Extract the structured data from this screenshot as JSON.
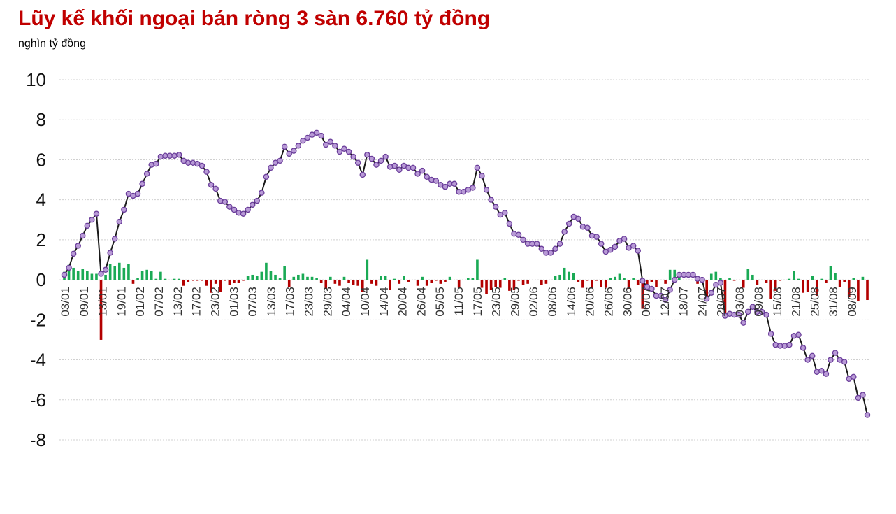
{
  "title": "Lũy kế khối ngoại bán ròng 3 sàn 6.760 tỷ đồng",
  "subtitle": "nghìn tỷ đồng",
  "colors": {
    "title": "#c00000",
    "line": "#1a1a1a",
    "marker_fill": "#b89ad6",
    "marker_stroke": "#6a3d9a",
    "bar_positive": "#1aaa55",
    "bar_negative": "#b30000",
    "grid": "#d0d0d0"
  },
  "chart_data": {
    "type": "bar+line",
    "ylim": [
      -8,
      10
    ],
    "yticks": [
      10,
      8,
      6,
      4,
      2,
      0,
      -2,
      -4,
      -6,
      -8
    ],
    "grid": true,
    "xtick_labels": [
      "03/01",
      "09/01",
      "13/01",
      "19/01",
      "01/02",
      "07/02",
      "13/02",
      "17/02",
      "23/02",
      "01/03",
      "07/03",
      "13/03",
      "17/03",
      "23/03",
      "29/03",
      "04/04",
      "10/04",
      "14/04",
      "20/04",
      "26/04",
      "05/05",
      "11/05",
      "17/05",
      "23/05",
      "29/05",
      "02/06",
      "08/06",
      "14/06",
      "20/06",
      "26/06",
      "30/06",
      "06/07",
      "12/07",
      "18/07",
      "24/07",
      "28/07",
      "03/08",
      "09/08",
      "15/08",
      "21/08",
      "25/08",
      "31/08",
      "08/09"
    ],
    "series": [
      {
        "role": "cumulative_line",
        "values": [
          0.25,
          0.6,
          1.3,
          1.7,
          2.2,
          2.7,
          3.0,
          3.3,
          0.3,
          0.5,
          1.35,
          2.05,
          2.9,
          3.5,
          4.3,
          4.2,
          4.3,
          4.8,
          5.3,
          5.75,
          5.8,
          6.15,
          6.2,
          6.2,
          6.2,
          6.25,
          5.95,
          5.85,
          5.85,
          5.8,
          5.7,
          5.4,
          4.75,
          4.55,
          3.95,
          3.9,
          3.65,
          3.5,
          3.35,
          3.3,
          3.5,
          3.75,
          3.95,
          4.35,
          5.15,
          5.6,
          5.85,
          5.95,
          6.65,
          6.3,
          6.45,
          6.7,
          6.95,
          7.1,
          7.25,
          7.35,
          7.2,
          6.75,
          6.9,
          6.7,
          6.4,
          6.55,
          6.4,
          6.15,
          5.85,
          5.25,
          6.25,
          6.05,
          5.75,
          5.95,
          6.15,
          5.65,
          5.7,
          5.5,
          5.7,
          5.6,
          5.6,
          5.3,
          5.45,
          5.15,
          5.0,
          4.95,
          4.75,
          4.65,
          4.8,
          4.8,
          4.4,
          4.4,
          4.5,
          4.6,
          5.6,
          5.2,
          4.5,
          4.0,
          3.65,
          3.25,
          3.35,
          2.8,
          2.3,
          2.25,
          2.0,
          1.8,
          1.8,
          1.8,
          1.55,
          1.35,
          1.35,
          1.55,
          1.8,
          2.4,
          2.8,
          3.15,
          3.05,
          2.65,
          2.6,
          2.2,
          2.15,
          1.8,
          1.4,
          1.5,
          1.65,
          1.95,
          2.05,
          1.6,
          1.7,
          1.45,
          -0.05,
          -0.35,
          -0.45,
          -0.8,
          -0.8,
          -1.0,
          -0.5,
          0.0,
          0.25,
          0.25,
          0.25,
          0.25,
          0.05,
          0.0,
          -0.95,
          -0.65,
          -0.25,
          -0.15,
          -1.8,
          -1.7,
          -1.75,
          -1.75,
          -2.15,
          -1.6,
          -1.35,
          -1.6,
          -1.6,
          -1.75,
          -2.7,
          -3.25,
          -3.3,
          -3.3,
          -3.25,
          -2.8,
          -2.75,
          -3.4,
          -4.0,
          -3.8,
          -4.6,
          -4.55,
          -4.7,
          -4.0,
          -3.65,
          -4.0,
          -4.1,
          -4.95,
          -4.85,
          -5.9,
          -5.75,
          -6.76
        ]
      },
      {
        "role": "daily_bars",
        "values": [
          0.4,
          0.75,
          0.6,
          0.45,
          0.55,
          0.45,
          0.3,
          0.3,
          -3.0,
          0.25,
          0.8,
          0.7,
          0.85,
          0.6,
          0.8,
          -0.2,
          0.1,
          0.45,
          0.5,
          0.45,
          0.05,
          0.4,
          0.05,
          0.0,
          0.05,
          0.05,
          -0.3,
          -0.1,
          -0.05,
          -0.05,
          -0.05,
          -0.3,
          -0.65,
          -0.2,
          -0.6,
          -0.05,
          -0.25,
          -0.15,
          -0.15,
          -0.05,
          0.2,
          0.25,
          0.2,
          0.4,
          0.85,
          0.45,
          0.25,
          0.1,
          0.7,
          -0.35,
          0.15,
          0.25,
          0.3,
          0.15,
          0.15,
          0.1,
          -0.15,
          -0.45,
          0.15,
          -0.2,
          -0.3,
          0.15,
          -0.15,
          -0.25,
          -0.3,
          -0.6,
          1.0,
          -0.2,
          -0.3,
          0.2,
          0.2,
          -0.5,
          0.05,
          -0.2,
          0.2,
          -0.1,
          0.0,
          -0.3,
          0.15,
          -0.3,
          -0.15,
          -0.05,
          -0.2,
          -0.1,
          0.15,
          0.0,
          -0.4,
          0.0,
          0.1,
          0.1,
          1.0,
          -0.4,
          -0.7,
          -0.5,
          -0.35,
          -0.4,
          0.1,
          -0.55,
          -0.5,
          -0.05,
          -0.25,
          -0.2,
          0.0,
          0.0,
          -0.25,
          -0.2,
          0.0,
          0.2,
          0.25,
          0.6,
          0.4,
          0.35,
          -0.1,
          -0.4,
          -0.05,
          -0.4,
          -0.05,
          -0.35,
          -0.4,
          0.1,
          0.15,
          0.3,
          0.1,
          -0.45,
          0.1,
          -0.25,
          -1.45,
          -0.3,
          -0.1,
          -0.35,
          0.0,
          -0.2,
          0.5,
          0.5,
          0.25,
          0.0,
          0.0,
          0.0,
          -0.2,
          -0.05,
          -0.95,
          0.3,
          0.4,
          0.1,
          -1.65,
          0.1,
          -0.05,
          0.0,
          -0.4,
          0.55,
          0.25,
          -0.25,
          0.0,
          -0.15,
          -0.95,
          -0.55,
          -0.05,
          0.0,
          0.05,
          0.45,
          0.05,
          -0.65,
          -0.6,
          0.2,
          -0.8,
          0.05,
          -0.15,
          0.7,
          0.35,
          -0.35,
          -0.1,
          -0.85,
          0.1,
          -1.05,
          0.15,
          -1.01
        ]
      }
    ]
  }
}
